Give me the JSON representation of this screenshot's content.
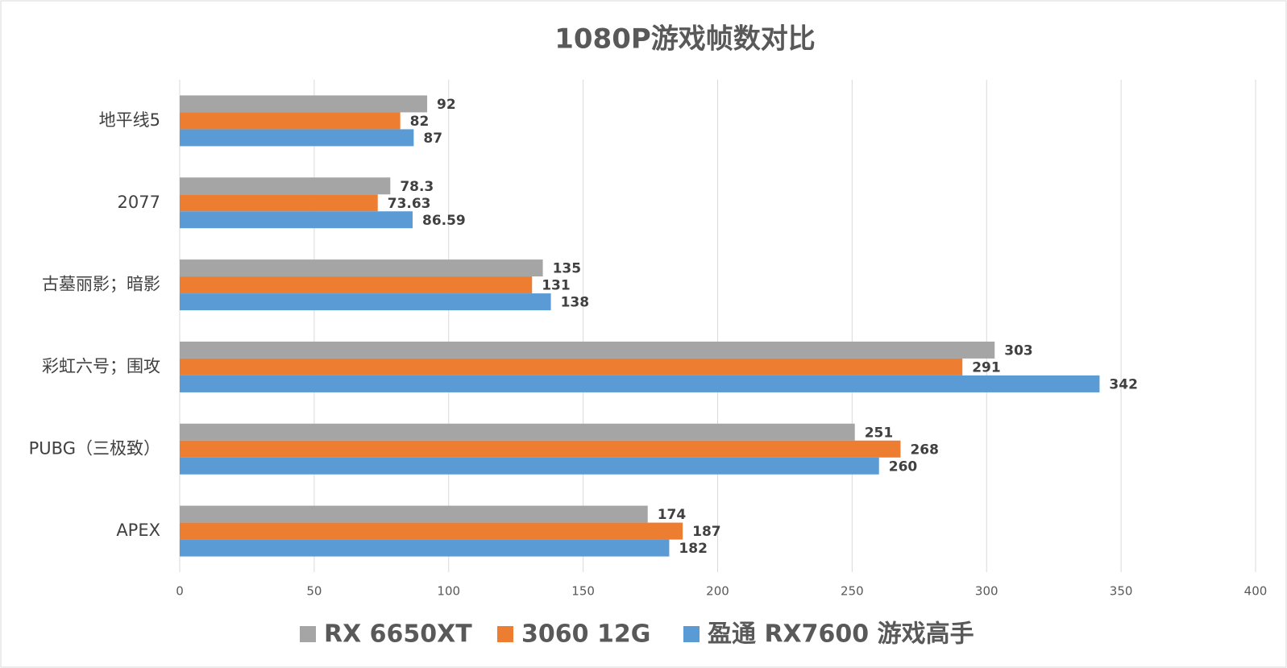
{
  "chart_data": {
    "type": "hbar",
    "title": "1080P游戏帧数对比",
    "categories": [
      "地平线5",
      "2077",
      "古墓丽影；暗影",
      "彩虹六号；围攻",
      "PUBG（三极致）",
      "APEX"
    ],
    "series": [
      {
        "name": "RX 6650XT",
        "color": "#a5a5a5",
        "values": [
          92,
          78.3,
          135,
          303,
          251,
          174
        ]
      },
      {
        "name": "3060 12G",
        "color": "#ed7d31",
        "values": [
          82,
          73.63,
          131,
          291,
          268,
          187
        ]
      },
      {
        "name": "盈通 RX7600 游戏高手",
        "color": "#5b9bd5",
        "values": [
          87,
          86.59,
          138,
          342,
          260,
          182
        ]
      }
    ],
    "xlim": [
      0,
      400
    ],
    "xticks": [
      0,
      50,
      100,
      150,
      200,
      250,
      300,
      350,
      400
    ],
    "grid": true,
    "legend": "bottom"
  }
}
